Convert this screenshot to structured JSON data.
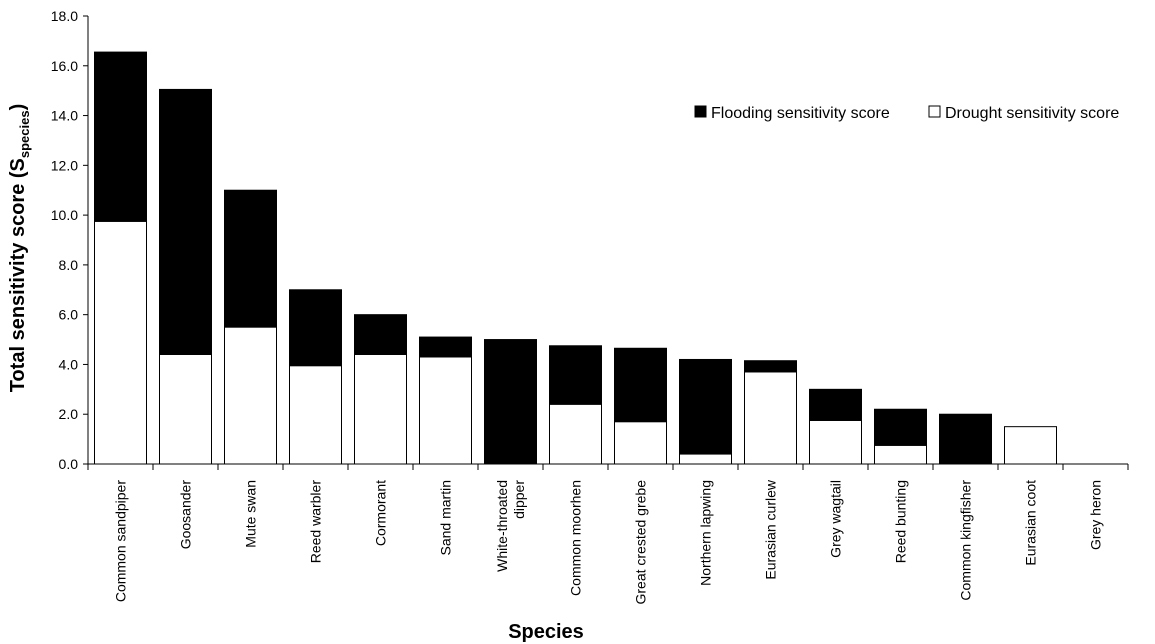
{
  "chart_data": {
    "type": "bar",
    "stacked": true,
    "title": "",
    "xlabel": "Species",
    "ylabel": "Total sensitivity score (S",
    "ylabel_subscript": "species",
    "ylabel_close": ")",
    "ylim": [
      0,
      18
    ],
    "yticks": [
      "0.0",
      "2.0",
      "4.0",
      "6.0",
      "8.0",
      "10.0",
      "12.0",
      "14.0",
      "16.0",
      "18.0"
    ],
    "grid": false,
    "legend_position": "top-right",
    "categories": [
      "Common sandpiper",
      "Goosander",
      "Mute swan",
      "Reed warbler",
      "Cormorant",
      "Sand martin",
      "White-throated dipper",
      "Common moorhen",
      "Great crested grebe",
      "Northern lapwing",
      "Eurasian curlew",
      "Grey wagtail",
      "Reed bunting",
      "Common kingfisher",
      "Eurasian coot",
      "Grey heron"
    ],
    "series": [
      {
        "name": "Drought sensitivity score",
        "color": "#ffffff",
        "values": [
          9.75,
          4.4,
          5.5,
          3.95,
          4.4,
          4.3,
          0,
          2.4,
          1.7,
          0.4,
          3.7,
          1.75,
          0.75,
          0,
          1.5,
          0
        ]
      },
      {
        "name": "Flooding sensitivity score",
        "color": "#000000",
        "values": [
          6.8,
          10.65,
          5.5,
          3.05,
          1.6,
          0.8,
          5.0,
          2.35,
          2.95,
          3.8,
          0.45,
          1.25,
          1.45,
          2.0,
          0,
          0
        ]
      }
    ]
  }
}
